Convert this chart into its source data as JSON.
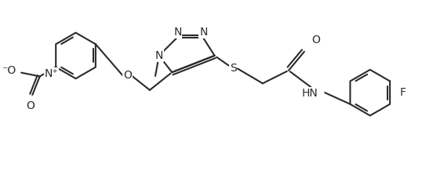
{
  "bg_color": "#ffffff",
  "line_color": "#2a2a2a",
  "line_width": 1.5,
  "font_size": 10.0,
  "fig_width": 5.52,
  "fig_height": 2.41,
  "dpi": 100,
  "xlim": [
    0,
    11.5
  ],
  "ylim": [
    0,
    5.0
  ]
}
